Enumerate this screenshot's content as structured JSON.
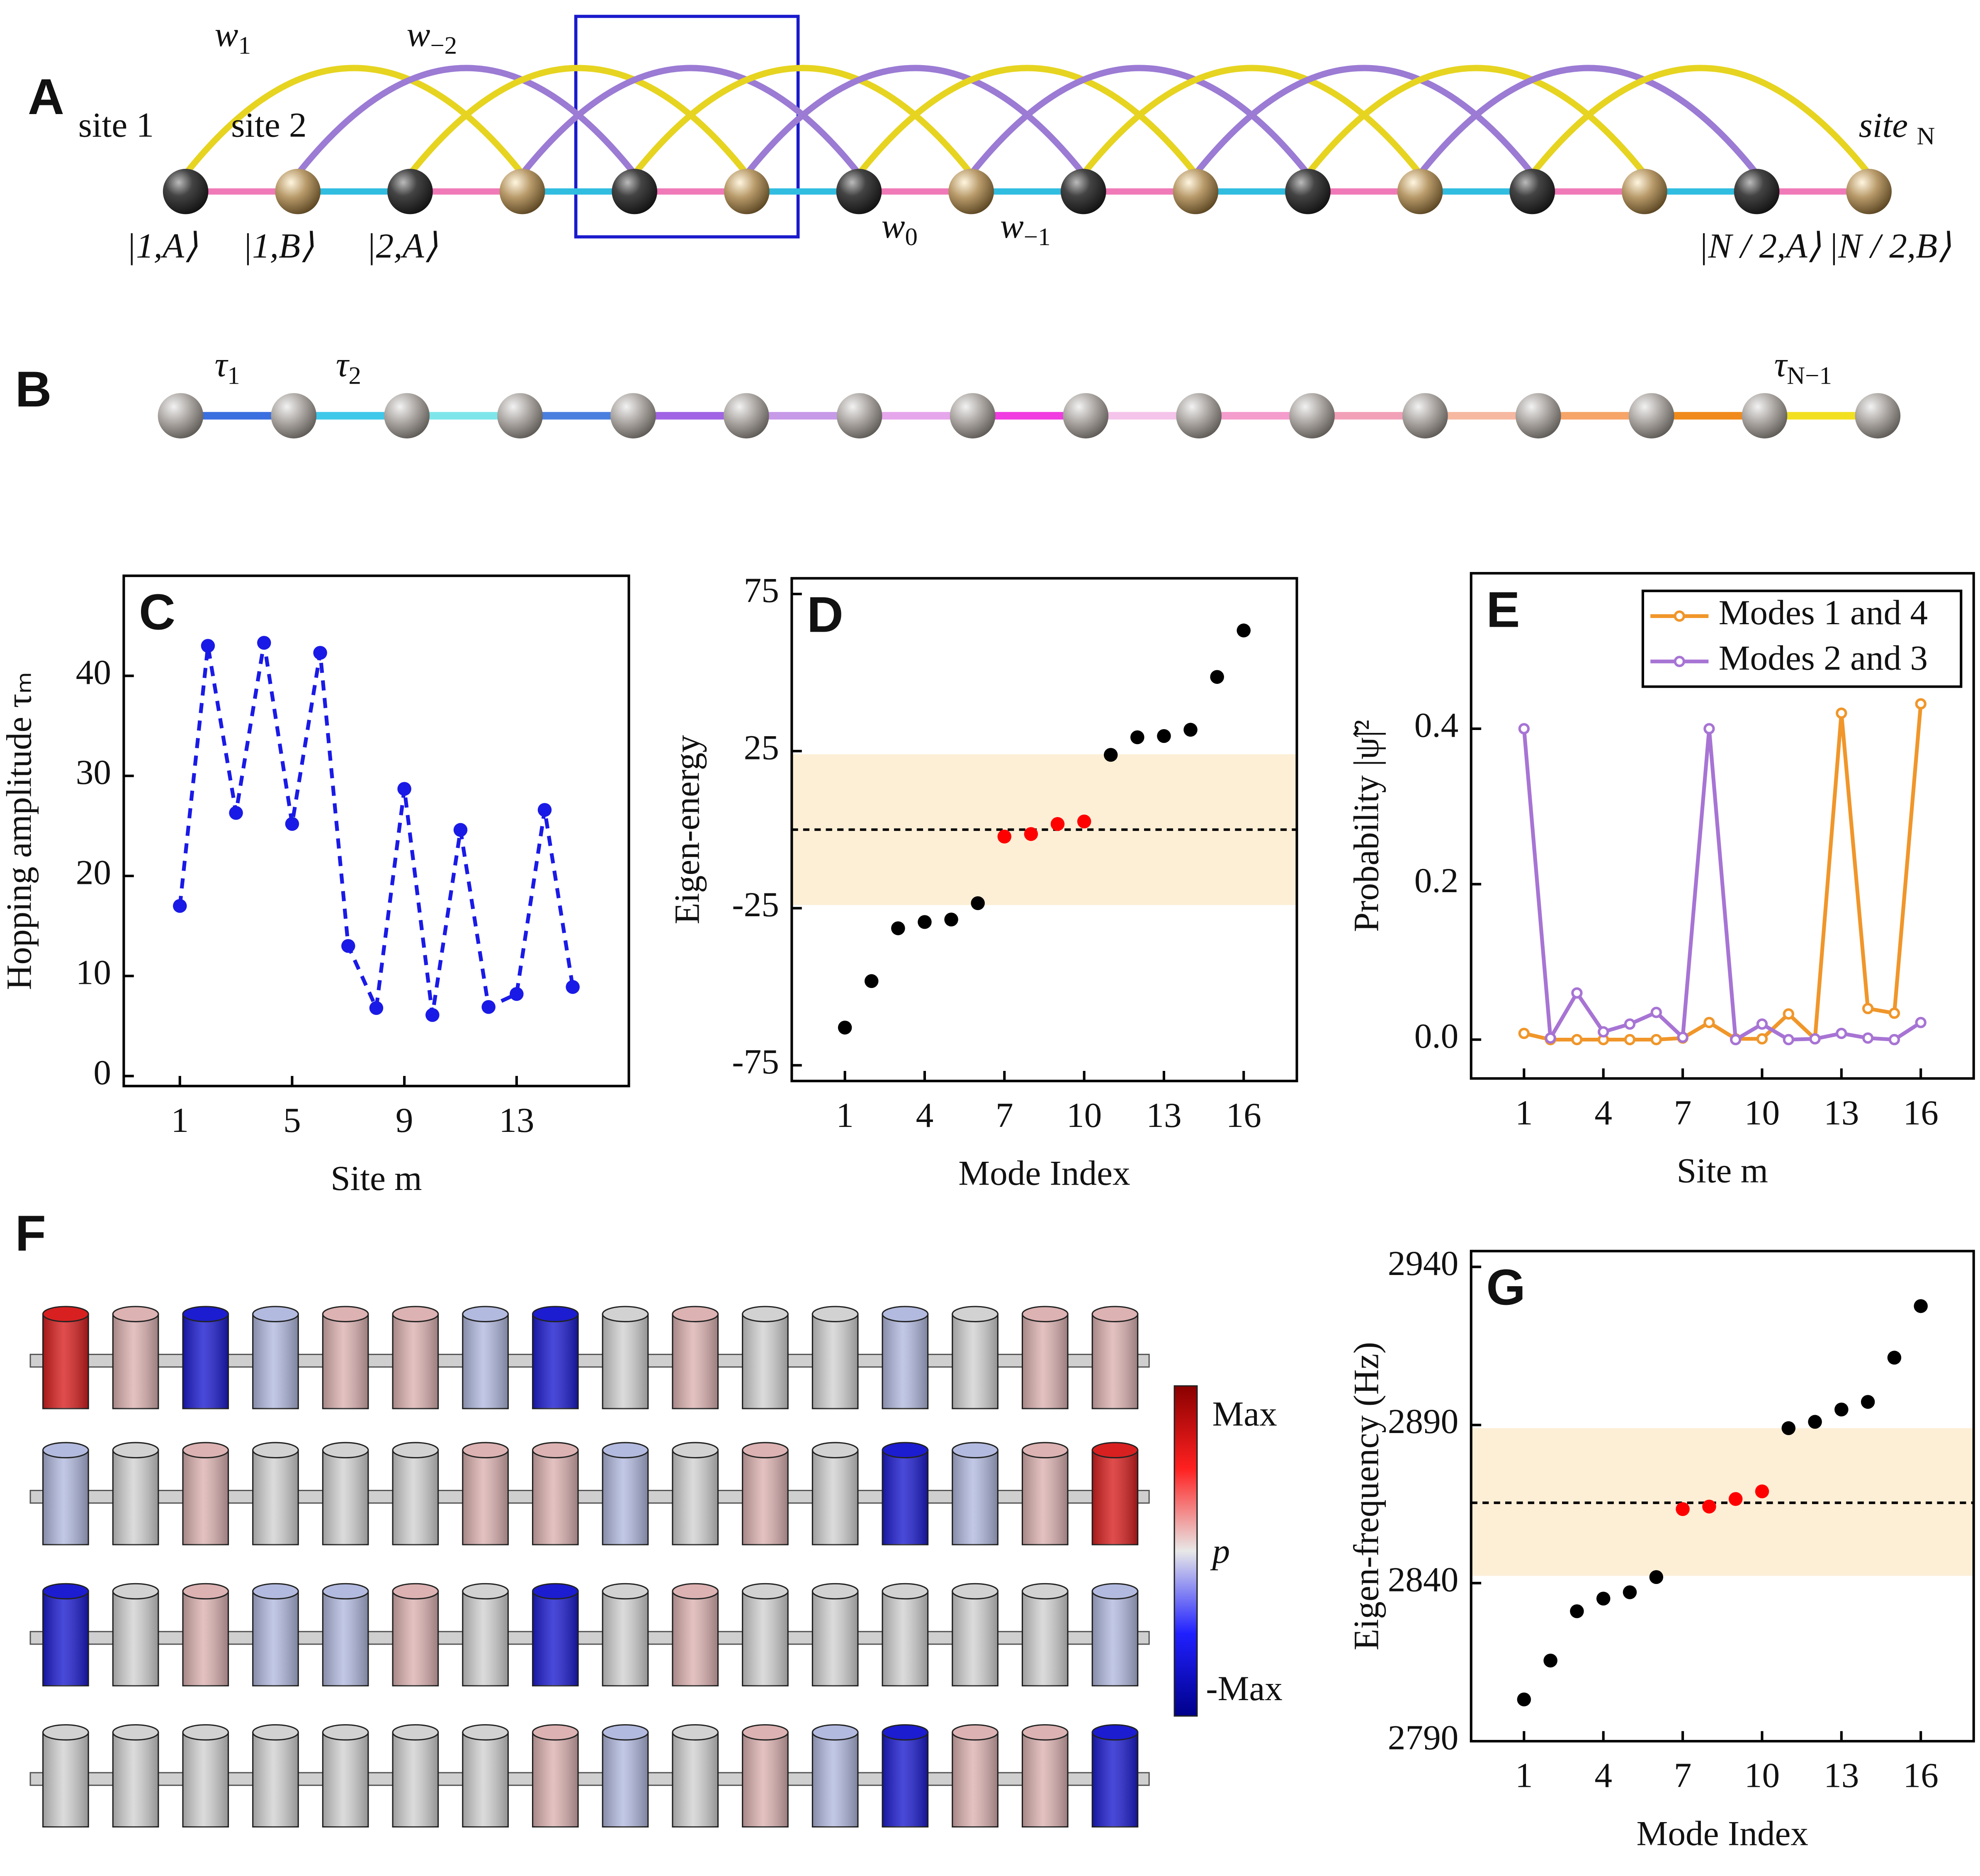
{
  "panel_a": {
    "label": "A",
    "hoppings": [
      {
        "text": "w",
        "sub": "1"
      },
      {
        "text": "w",
        "sub": "−2"
      },
      {
        "text": "w",
        "sub": "0"
      },
      {
        "text": "w",
        "sub": "−1"
      }
    ],
    "sites": [
      "site 1",
      "site 2",
      {
        "text": "site ",
        "sub": "N"
      }
    ],
    "states": [
      "|1,A⟩",
      "|1,B⟩",
      "|2,A⟩",
      "|N / 2,A⟩",
      "|N / 2,B⟩"
    ],
    "colors": {
      "w1": "#e6d420",
      "w-2": "#9b7bd4",
      "w0": "#f07ab8",
      "w-1": "#30bde0"
    }
  },
  "panel_b": {
    "label": "B",
    "hoppings": [
      {
        "text": "τ",
        "sub": "1"
      },
      {
        "text": "τ",
        "sub": "2"
      },
      {
        "text": "τ",
        "sub": "N−1"
      }
    ],
    "bond_colors": [
      "#3a6fe0",
      "#40c8ea",
      "#7ee6ea",
      "#4a7fe0",
      "#a064e4",
      "#c79ae8",
      "#e6a6ec",
      "#f03ce0",
      "#f4c4ea",
      "#f49ccc",
      "#f2a0b8",
      "#f6b8a0",
      "#f6a468",
      "#f08a1c",
      "#f2e020"
    ]
  },
  "panel_f": {
    "label": "F",
    "colorbar": [
      "Max",
      "p",
      "-Max"
    ],
    "palette": {
      "R": "#d82020",
      "r": "#ddb2b2",
      "B": "#1c1cd0",
      "b": "#b2badf",
      "g": "#d2d2d2"
    },
    "rows": [
      "RrBbrrbBgrggbgrr",
      "bgrgggrrbgrgBbrR",
      "BgrbbrgBgrgggggb",
      "gggggggrbgrbBrrB"
    ]
  },
  "chart_data": [
    {
      "type": "line",
      "panel": "C",
      "xlabel": "Site m",
      "ylabel": "Hopping amplitude τₘ",
      "x": [
        1,
        2,
        3,
        4,
        5,
        6,
        7,
        8,
        9,
        10,
        11,
        12,
        13,
        14,
        15
      ],
      "values": [
        17,
        43,
        26.3,
        43.3,
        25.2,
        42.3,
        13,
        6.8,
        28.7,
        6.1,
        24.6,
        6.9,
        8.2,
        26.6,
        8.9
      ],
      "color": "#1a1ae6",
      "line_style": "dashed",
      "marker": "filled",
      "xlim": [
        -1,
        17
      ],
      "ylim": [
        -1,
        50
      ],
      "xticks": [
        1,
        5,
        9,
        13
      ],
      "yticks": [
        0,
        10,
        20,
        30,
        40
      ]
    },
    {
      "type": "scatter",
      "panel": "D",
      "xlabel": "Mode Index",
      "ylabel": "Eigen-energy",
      "x": [
        1,
        2,
        3,
        4,
        5,
        6,
        7,
        8,
        9,
        10,
        11,
        12,
        13,
        14,
        15,
        16
      ],
      "values": [
        -63,
        -48.2,
        -31.4,
        -29.4,
        -28.6,
        -23.4,
        -2.2,
        -1.4,
        1.8,
        2.6,
        23.8,
        29.4,
        29.8,
        31.8,
        48.6,
        63.4
      ],
      "colors": [
        "#000",
        "#000",
        "#000",
        "#000",
        "#000",
        "#000",
        "#f00",
        "#f00",
        "#f00",
        "#f00",
        "#000",
        "#000",
        "#000",
        "#000",
        "#000",
        "#000"
      ],
      "band": [
        -24,
        24
      ],
      "band_color": "#fdefd6",
      "hline": 0,
      "xlim": [
        -1,
        18
      ],
      "ylim": [
        -80,
        80
      ],
      "xticks": [
        1,
        4,
        7,
        10,
        13,
        16
      ],
      "yticks": [
        -75,
        -25,
        25,
        75
      ]
    },
    {
      "type": "line",
      "panel": "E",
      "xlabel": "Site m",
      "ylabel": "Probability |ψ̃|²",
      "x": [
        1,
        2,
        3,
        4,
        5,
        6,
        7,
        8,
        9,
        10,
        11,
        12,
        13,
        14,
        15,
        16
      ],
      "series": [
        {
          "name": "Modes 1 and 4",
          "color": "#f0962a",
          "values": [
            0.008,
            0,
            0,
            0,
            0,
            0,
            0.002,
            0.022,
            0.001,
            0.001,
            0.033,
            0.001,
            0.42,
            0.04,
            0.034,
            0.432
          ]
        },
        {
          "name": "Modes 2 and 3",
          "color": "#a774d4",
          "values": [
            0.4,
            0.002,
            0.06,
            0.01,
            0.02,
            0.035,
            0.003,
            0.4,
            0,
            0.02,
            0,
            0.001,
            0.008,
            0.002,
            0,
            0.022
          ]
        }
      ],
      "marker": "open",
      "legend": "upper right",
      "xlim": [
        -1,
        18
      ],
      "ylim": [
        -0.05,
        0.6
      ],
      "xticks": [
        1,
        4,
        7,
        10,
        13,
        16
      ],
      "yticks": [
        {
          "value": 0,
          "label": "0.0"
        },
        0.2,
        0.4
      ]
    },
    {
      "type": "scatter",
      "panel": "G",
      "xlabel": "Mode Index",
      "ylabel": "Eigen-frequency (Hz)",
      "x": [
        1,
        2,
        3,
        4,
        5,
        6,
        7,
        8,
        9,
        10,
        11,
        12,
        13,
        14,
        15,
        16
      ],
      "values": [
        2803.2,
        2815.5,
        2831.1,
        2835.1,
        2837.1,
        2841.9,
        2863.4,
        2864.2,
        2866.6,
        2869,
        2889,
        2891,
        2894.9,
        2897.3,
        2911.3,
        2927.6
      ],
      "colors": [
        "#000",
        "#000",
        "#000",
        "#000",
        "#000",
        "#000",
        "#f00",
        "#f00",
        "#f00",
        "#f00",
        "#000",
        "#000",
        "#000",
        "#000",
        "#000",
        "#000"
      ],
      "band": [
        2842.3,
        2889
      ],
      "band_color": "#fdefd6",
      "hline": 2865.4,
      "xlim": [
        -1,
        18
      ],
      "ylim": [
        2790,
        2945
      ],
      "xticks": [
        1,
        4,
        7,
        10,
        13,
        16
      ],
      "yticks": [
        2790,
        2840,
        2890,
        2940
      ]
    }
  ]
}
